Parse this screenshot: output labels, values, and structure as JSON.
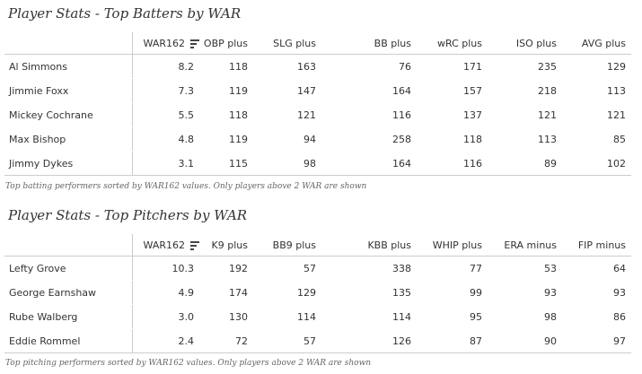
{
  "batters": {
    "title": "Player Stats - Top Batters by WAR",
    "columns": [
      "",
      "WAR162",
      "OBP plus",
      "SLG plus",
      "BB plus",
      "wRC plus",
      "ISO plus",
      "AVG plus"
    ],
    "rows": [
      [
        "Al Simmons",
        "8.2",
        "118",
        "163",
        "76",
        "171",
        "235",
        "129"
      ],
      [
        "Jimmie Foxx",
        "7.3",
        "119",
        "147",
        "164",
        "157",
        "218",
        "113"
      ],
      [
        "Mickey Cochrane",
        "5.5",
        "118",
        "121",
        "116",
        "137",
        "121",
        "121"
      ],
      [
        "Max Bishop",
        "4.8",
        "119",
        "94",
        "258",
        "118",
        "113",
        "85"
      ],
      [
        "Jimmy Dykes",
        "3.1",
        "115",
        "98",
        "164",
        "116",
        "89",
        "102"
      ]
    ],
    "caption": "Top batting performers sorted by WAR162 values. Only players above 2 WAR are shown"
  },
  "pitchers": {
    "title": "Player Stats - Top Pitchers by WAR",
    "columns": [
      "",
      "WAR162",
      "K9 plus",
      "BB9 plus",
      "KBB plus",
      "WHIP plus",
      "ERA minus",
      "FIP minus"
    ],
    "rows": [
      [
        "Lefty Grove",
        "10.3",
        "192",
        "57",
        "338",
        "77",
        "53",
        "64"
      ],
      [
        "George Earnshaw",
        "4.9",
        "174",
        "129",
        "135",
        "99",
        "93",
        "93"
      ],
      [
        "Rube Walberg",
        "3.0",
        "130",
        "114",
        "114",
        "95",
        "98",
        "86"
      ],
      [
        "Eddie Rommel",
        "2.4",
        "72",
        "57",
        "126",
        "87",
        "90",
        "97"
      ]
    ],
    "caption": "Top pitching performers sorted by WAR162 values. Only players above 2 WAR are shown"
  }
}
